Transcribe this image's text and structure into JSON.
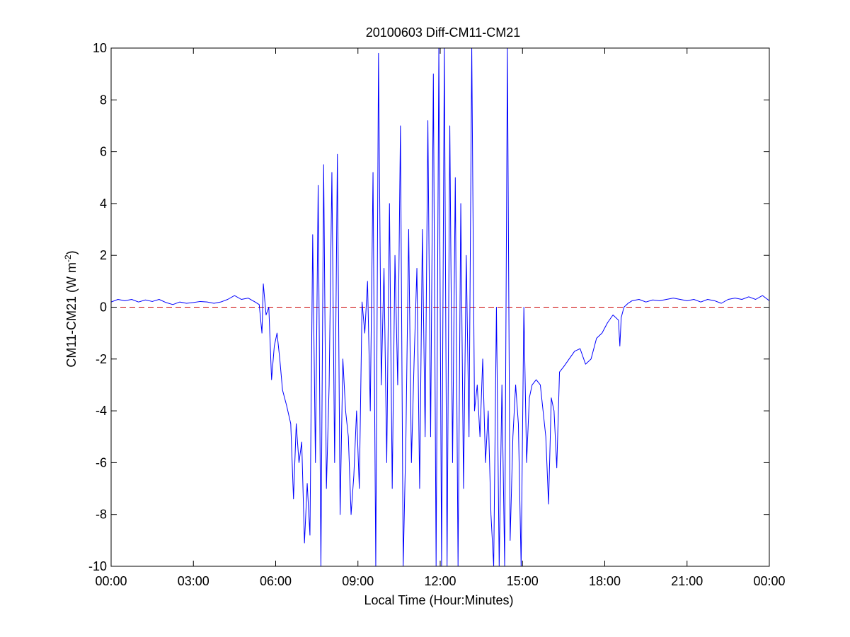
{
  "chart_data": {
    "type": "line",
    "title": "20100603 Diff-CM11-CM21",
    "xlabel": "Local Time (Hour:Minutes)",
    "ylabel": {
      "main": "CM11-CM21 (W m",
      "sup": "-2",
      "close": ")"
    },
    "xlim": [
      0,
      24
    ],
    "ylim": [
      -10,
      10
    ],
    "x_unit": "hours",
    "xticks": [
      {
        "value": 0,
        "label": "00:00"
      },
      {
        "value": 3,
        "label": "03:00"
      },
      {
        "value": 6,
        "label": "06:00"
      },
      {
        "value": 9,
        "label": "09:00"
      },
      {
        "value": 12,
        "label": "12:00"
      },
      {
        "value": 15,
        "label": "15:00"
      },
      {
        "value": 18,
        "label": "18:00"
      },
      {
        "value": 21,
        "label": "21:00"
      },
      {
        "value": 24,
        "label": "00:00"
      }
    ],
    "yticks": [
      {
        "value": 10,
        "label": "10"
      },
      {
        "value": 8,
        "label": "8"
      },
      {
        "value": 6,
        "label": "6"
      },
      {
        "value": 4,
        "label": "4"
      },
      {
        "value": 2,
        "label": "2"
      },
      {
        "value": 0,
        "label": "0"
      },
      {
        "value": -2,
        "label": "-2"
      },
      {
        "value": -4,
        "label": "-4"
      },
      {
        "value": -6,
        "label": "-6"
      },
      {
        "value": -8,
        "label": "-8"
      },
      {
        "value": -10,
        "label": "-10"
      }
    ],
    "grid": false,
    "reference_line": {
      "y": 0,
      "color": "#cc0000",
      "style": "dashed"
    },
    "series": [
      {
        "color": "#0000ff",
        "points": [
          [
            0.0,
            0.2
          ],
          [
            0.25,
            0.3
          ],
          [
            0.5,
            0.25
          ],
          [
            0.75,
            0.3
          ],
          [
            1.0,
            0.2
          ],
          [
            1.25,
            0.28
          ],
          [
            1.5,
            0.22
          ],
          [
            1.75,
            0.3
          ],
          [
            2.0,
            0.18
          ],
          [
            2.25,
            0.1
          ],
          [
            2.5,
            0.2
          ],
          [
            2.75,
            0.15
          ],
          [
            3.0,
            0.18
          ],
          [
            3.25,
            0.22
          ],
          [
            3.5,
            0.2
          ],
          [
            3.75,
            0.15
          ],
          [
            4.0,
            0.2
          ],
          [
            4.25,
            0.3
          ],
          [
            4.5,
            0.45
          ],
          [
            4.75,
            0.3
          ],
          [
            5.0,
            0.35
          ],
          [
            5.25,
            0.2
          ],
          [
            5.4,
            0.1
          ],
          [
            5.5,
            -1.0
          ],
          [
            5.55,
            0.9
          ],
          [
            5.65,
            -0.3
          ],
          [
            5.75,
            0.0
          ],
          [
            5.85,
            -2.8
          ],
          [
            5.95,
            -1.5
          ],
          [
            6.05,
            -1.0
          ],
          [
            6.15,
            -2.0
          ],
          [
            6.25,
            -3.2
          ],
          [
            6.4,
            -3.8
          ],
          [
            6.55,
            -4.5
          ],
          [
            6.65,
            -7.4
          ],
          [
            6.75,
            -4.5
          ],
          [
            6.85,
            -6.0
          ],
          [
            6.95,
            -5.2
          ],
          [
            7.05,
            -9.1
          ],
          [
            7.15,
            -6.8
          ],
          [
            7.25,
            -8.8
          ],
          [
            7.35,
            2.8
          ],
          [
            7.45,
            -6.0
          ],
          [
            7.55,
            4.7
          ],
          [
            7.65,
            -10.0
          ],
          [
            7.75,
            5.5
          ],
          [
            7.85,
            -7.0
          ],
          [
            7.95,
            -3.0
          ],
          [
            8.05,
            5.2
          ],
          [
            8.15,
            -6.0
          ],
          [
            8.25,
            5.9
          ],
          [
            8.35,
            -8.0
          ],
          [
            8.45,
            -2.0
          ],
          [
            8.55,
            -4.0
          ],
          [
            8.65,
            -5.0
          ],
          [
            8.75,
            -8.0
          ],
          [
            8.85,
            -6.5
          ],
          [
            8.95,
            -4.0
          ],
          [
            9.05,
            -7.0
          ],
          [
            9.15,
            0.2
          ],
          [
            9.25,
            -1.0
          ],
          [
            9.35,
            1.0
          ],
          [
            9.45,
            -4.0
          ],
          [
            9.55,
            5.2
          ],
          [
            9.65,
            -10.0
          ],
          [
            9.75,
            9.8
          ],
          [
            9.85,
            -3.0
          ],
          [
            9.95,
            1.5
          ],
          [
            10.05,
            -6.0
          ],
          [
            10.15,
            4.0
          ],
          [
            10.25,
            -7.0
          ],
          [
            10.35,
            2.0
          ],
          [
            10.45,
            -3.0
          ],
          [
            10.55,
            7.0
          ],
          [
            10.65,
            -10.0
          ],
          [
            10.75,
            -5.0
          ],
          [
            10.85,
            3.0
          ],
          [
            10.95,
            -6.0
          ],
          [
            11.05,
            -2.0
          ],
          [
            11.15,
            1.5
          ],
          [
            11.25,
            -7.0
          ],
          [
            11.35,
            3.0
          ],
          [
            11.45,
            -5.0
          ],
          [
            11.55,
            7.2
          ],
          [
            11.65,
            -5.0
          ],
          [
            11.75,
            9.0
          ],
          [
            11.85,
            -10.0
          ],
          [
            11.95,
            10.0
          ],
          [
            12.05,
            -10.0
          ],
          [
            12.15,
            10.0
          ],
          [
            12.25,
            -10.0
          ],
          [
            12.35,
            7.0
          ],
          [
            12.45,
            -6.0
          ],
          [
            12.55,
            5.0
          ],
          [
            12.65,
            -10.0
          ],
          [
            12.75,
            4.0
          ],
          [
            12.85,
            -7.0
          ],
          [
            12.95,
            2.0
          ],
          [
            13.05,
            -5.0
          ],
          [
            13.15,
            10.0
          ],
          [
            13.25,
            -4.0
          ],
          [
            13.35,
            -3.0
          ],
          [
            13.45,
            -5.0
          ],
          [
            13.55,
            -2.0
          ],
          [
            13.65,
            -6.0
          ],
          [
            13.75,
            -4.0
          ],
          [
            13.85,
            -8.0
          ],
          [
            13.95,
            -10.0
          ],
          [
            14.05,
            0.0
          ],
          [
            14.15,
            -10.0
          ],
          [
            14.25,
            -3.0
          ],
          [
            14.35,
            -10.0
          ],
          [
            14.45,
            10.0
          ],
          [
            14.55,
            -9.0
          ],
          [
            14.65,
            -5.0
          ],
          [
            14.75,
            -3.0
          ],
          [
            14.85,
            -4.5
          ],
          [
            14.95,
            -10.0
          ],
          [
            15.05,
            0.0
          ],
          [
            15.15,
            -6.0
          ],
          [
            15.25,
            -3.5
          ],
          [
            15.35,
            -3.0
          ],
          [
            15.5,
            -2.8
          ],
          [
            15.65,
            -3.0
          ],
          [
            15.75,
            -4.0
          ],
          [
            15.85,
            -5.0
          ],
          [
            15.95,
            -7.6
          ],
          [
            16.05,
            -3.5
          ],
          [
            16.15,
            -4.0
          ],
          [
            16.25,
            -6.2
          ],
          [
            16.35,
            -2.5
          ],
          [
            16.5,
            -2.3
          ],
          [
            16.7,
            -2.0
          ],
          [
            16.9,
            -1.7
          ],
          [
            17.1,
            -1.6
          ],
          [
            17.3,
            -2.2
          ],
          [
            17.5,
            -2.0
          ],
          [
            17.7,
            -1.2
          ],
          [
            17.9,
            -1.0
          ],
          [
            18.1,
            -0.6
          ],
          [
            18.3,
            -0.3
          ],
          [
            18.5,
            -0.5
          ],
          [
            18.55,
            -1.5
          ],
          [
            18.6,
            -0.4
          ],
          [
            18.7,
            0.0
          ],
          [
            18.85,
            0.15
          ],
          [
            19.0,
            0.25
          ],
          [
            19.25,
            0.3
          ],
          [
            19.5,
            0.2
          ],
          [
            19.75,
            0.28
          ],
          [
            20.0,
            0.25
          ],
          [
            20.25,
            0.3
          ],
          [
            20.5,
            0.35
          ],
          [
            20.75,
            0.3
          ],
          [
            21.0,
            0.25
          ],
          [
            21.25,
            0.3
          ],
          [
            21.5,
            0.2
          ],
          [
            21.75,
            0.3
          ],
          [
            22.0,
            0.25
          ],
          [
            22.25,
            0.15
          ],
          [
            22.5,
            0.3
          ],
          [
            22.75,
            0.35
          ],
          [
            23.0,
            0.3
          ],
          [
            23.25,
            0.4
          ],
          [
            23.5,
            0.3
          ],
          [
            23.75,
            0.45
          ],
          [
            24.0,
            0.25
          ]
        ]
      }
    ]
  }
}
